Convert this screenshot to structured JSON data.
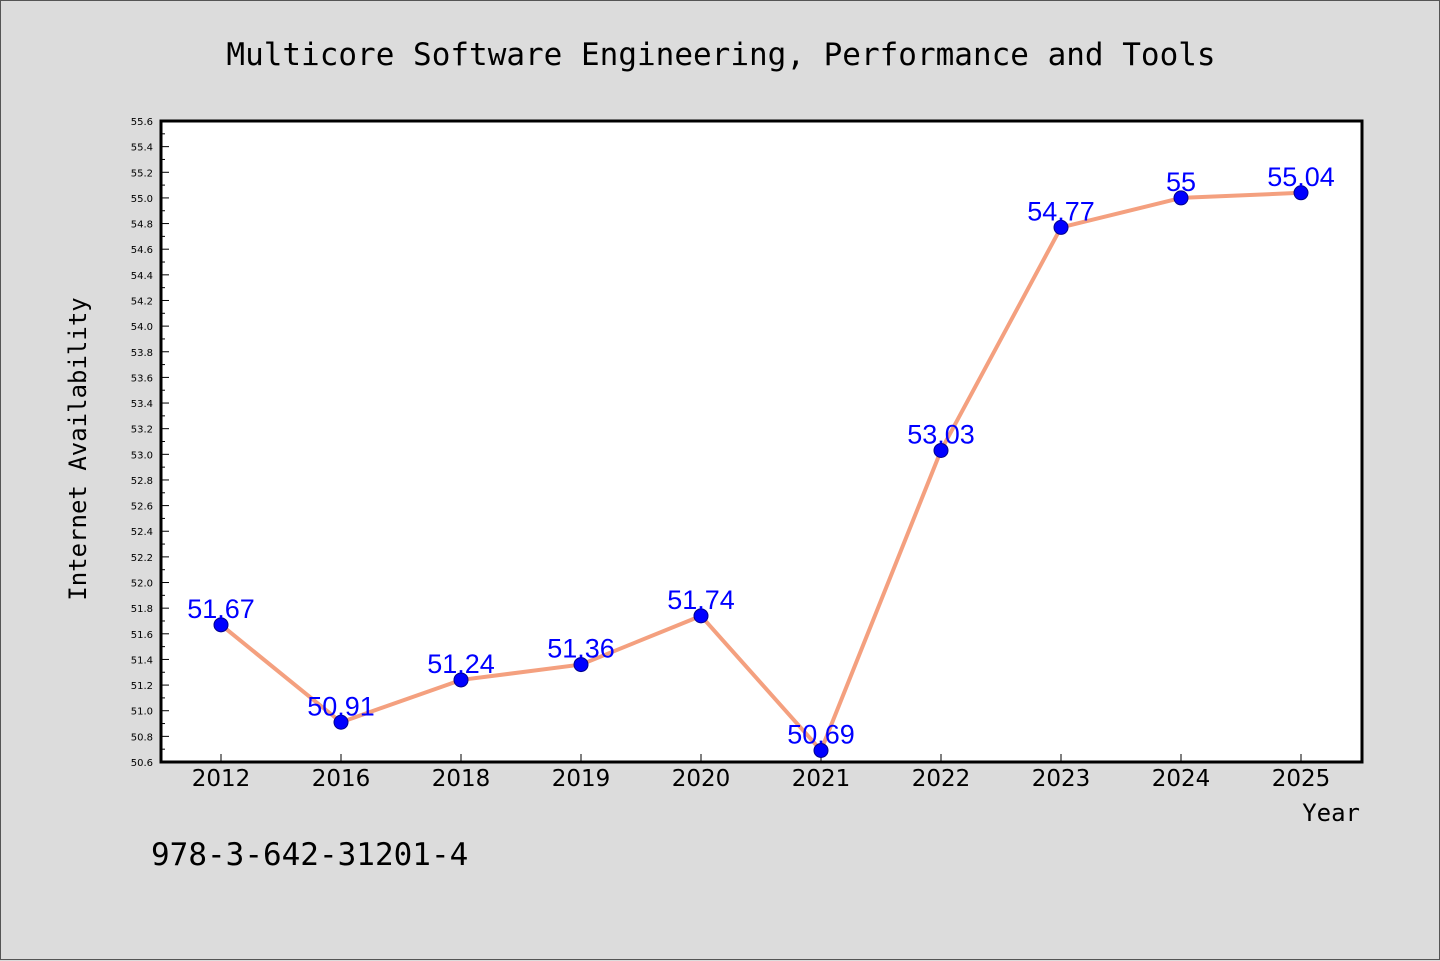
{
  "colors": {
    "background": "#dcdcdc",
    "plot_background": "#ffffff",
    "line": "#f4a07f",
    "marker": "#0000ff",
    "data_label": "#0000ff"
  },
  "isbn": "978-3-642-31201-4",
  "chart_data": {
    "type": "line",
    "title": "Multicore Software Engineering, Performance and Tools",
    "xlabel": "Year",
    "ylabel": "Internet Availability",
    "categories": [
      "2012",
      "2016",
      "2018",
      "2019",
      "2020",
      "2021",
      "2022",
      "2023",
      "2024",
      "2025"
    ],
    "series": [
      {
        "values": [
          51.67,
          50.91,
          51.24,
          51.36,
          51.74,
          50.69,
          53.03,
          54.77,
          55,
          55.04
        ],
        "labels": [
          "51.67",
          "50.91",
          "51.24",
          "51.36",
          "51.74",
          "50.69",
          "53.03",
          "54.77",
          "55",
          "55.04"
        ]
      }
    ],
    "ylim": [
      50.6,
      55.6
    ],
    "ytick_step": 0.2,
    "yticks": [
      "50.6",
      "50.8",
      "51.0",
      "51.2",
      "51.4",
      "51.6",
      "51.8",
      "52.0",
      "52.2",
      "52.4",
      "52.6",
      "52.8",
      "53.0",
      "53.2",
      "53.4",
      "53.6",
      "53.8",
      "54.0",
      "54.2",
      "54.4",
      "54.6",
      "54.8",
      "55.0",
      "55.2",
      "55.4",
      "55.6"
    ],
    "grid": false,
    "legend": "none",
    "markers": true
  }
}
